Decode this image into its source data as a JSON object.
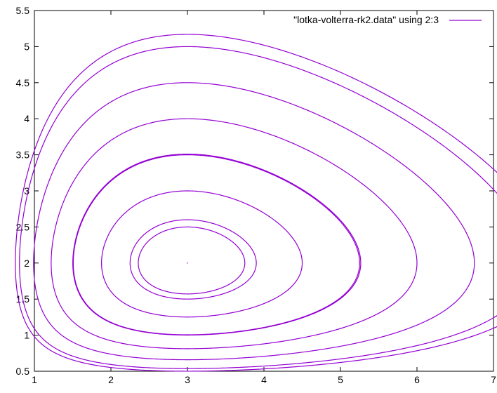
{
  "chart_data": {
    "type": "line",
    "title": "",
    "xlabel": "",
    "ylabel": "",
    "xlim": [
      1,
      7
    ],
    "ylim": [
      0.5,
      5.5
    ],
    "x_ticks": [
      1,
      2,
      3,
      4,
      5,
      6,
      7
    ],
    "y_ticks": [
      0.5,
      1,
      1.5,
      2,
      2.5,
      3,
      3.5,
      4,
      4.5,
      5,
      5.5
    ],
    "x_tick_labels": [
      "1",
      "2",
      "3",
      "4",
      "5",
      "6",
      "7"
    ],
    "y_tick_labels": [
      "0.5",
      "1",
      "1.5",
      "2",
      "2.5",
      "3",
      "3.5",
      "4",
      "4.5",
      "5",
      "5.5"
    ],
    "grid": false,
    "legend_position": "top-right",
    "series": [
      {
        "name": "\"lotka-volterra-rk2.data\" using 2:3",
        "color": "#9400d3",
        "model": "Lotka-Volterra orbits around equilibrium (x=3, y=2)",
        "equilibrium": [
          3,
          2
        ],
        "orbit_max_y": [
          2.5,
          2.6,
          3.0,
          3.5,
          3.51,
          4.0,
          4.5,
          5.0,
          5.17
        ]
      }
    ]
  }
}
